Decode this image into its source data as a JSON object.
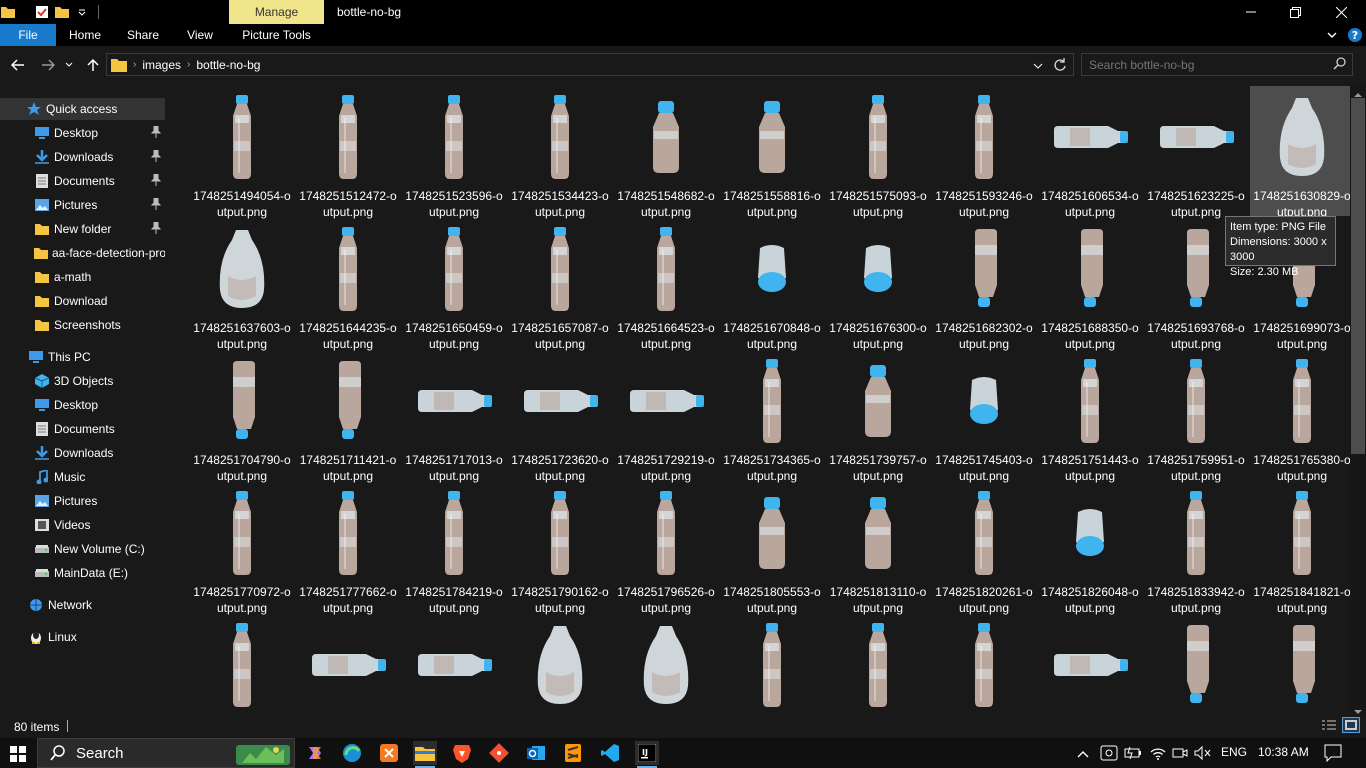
{
  "window": {
    "title": "bottle-no-bg",
    "contextual_tab": "Manage",
    "contextual_subtab": "Picture Tools"
  },
  "ribbon": {
    "tabs": [
      "File",
      "Home",
      "Share",
      "View"
    ]
  },
  "address": {
    "breadcrumbs": [
      "images",
      "bottle-no-bg"
    ]
  },
  "search": {
    "placeholder": "Search bottle-no-bg"
  },
  "sidebar": {
    "quick_access": {
      "label": "Quick access",
      "items": [
        {
          "label": "Desktop",
          "icon": "desktop-icon",
          "pinned": true
        },
        {
          "label": "Downloads",
          "icon": "download-icon",
          "pinned": true
        },
        {
          "label": "Documents",
          "icon": "document-icon",
          "pinned": true
        },
        {
          "label": "Pictures",
          "icon": "pictures-icon",
          "pinned": true
        },
        {
          "label": "New folder",
          "icon": "folder-icon",
          "pinned": true
        },
        {
          "label": "aa-face-detection-pro",
          "icon": "folder-icon",
          "pinned": false
        },
        {
          "label": "a-math",
          "icon": "folder-icon",
          "pinned": false
        },
        {
          "label": "Download",
          "icon": "folder-icon",
          "pinned": false
        },
        {
          "label": "Screenshots",
          "icon": "folder-icon",
          "pinned": false
        }
      ]
    },
    "this_pc": {
      "label": "This PC",
      "items": [
        {
          "label": "3D Objects",
          "icon": "3d-objects-icon"
        },
        {
          "label": "Desktop",
          "icon": "desktop-icon"
        },
        {
          "label": "Documents",
          "icon": "document-icon"
        },
        {
          "label": "Downloads",
          "icon": "download-icon"
        },
        {
          "label": "Music",
          "icon": "music-icon"
        },
        {
          "label": "Pictures",
          "icon": "pictures-icon"
        },
        {
          "label": "Videos",
          "icon": "video-icon"
        },
        {
          "label": "New Volume (C:)",
          "icon": "drive-icon"
        },
        {
          "label": "MainData (E:)",
          "icon": "drive-icon"
        }
      ]
    },
    "network": {
      "label": "Network"
    },
    "linux": {
      "label": "Linux"
    }
  },
  "files": [
    {
      "line1": "1748251494054-o",
      "line2": "utput.png",
      "kind": "upright"
    },
    {
      "line1": "1748251512472-o",
      "line2": "utput.png",
      "kind": "upright"
    },
    {
      "line1": "1748251523596-o",
      "line2": "utput.png",
      "kind": "upright"
    },
    {
      "line1": "1748251534423-o",
      "line2": "utput.png",
      "kind": "upright"
    },
    {
      "line1": "1748251548682-o",
      "line2": "utput.png",
      "kind": "short"
    },
    {
      "line1": "1748251558816-o",
      "line2": "utput.png",
      "kind": "short"
    },
    {
      "line1": "1748251575093-o",
      "line2": "utput.png",
      "kind": "upright"
    },
    {
      "line1": "1748251593246-o",
      "line2": "utput.png",
      "kind": "upright"
    },
    {
      "line1": "1748251606534-o",
      "line2": "utput.png",
      "kind": "horizontal"
    },
    {
      "line1": "1748251623225-o",
      "line2": "utput.png",
      "kind": "horizontal"
    },
    {
      "line1": "1748251630829-o",
      "line2": "utput.png",
      "kind": "blob"
    },
    {
      "line1": "1748251637603-o",
      "line2": "utput.png",
      "kind": "blob"
    },
    {
      "line1": "1748251644235-o",
      "line2": "utput.png",
      "kind": "upright"
    },
    {
      "line1": "1748251650459-o",
      "line2": "utput.png",
      "kind": "upright"
    },
    {
      "line1": "1748251657087-o",
      "line2": "utput.png",
      "kind": "upright"
    },
    {
      "line1": "1748251664523-o",
      "line2": "utput.png",
      "kind": "upright"
    },
    {
      "line1": "1748251670848-o",
      "line2": "utput.png",
      "kind": "small"
    },
    {
      "line1": "1748251676300-o",
      "line2": "utput.png",
      "kind": "small"
    },
    {
      "line1": "1748251682302-o",
      "line2": "utput.png",
      "kind": "down"
    },
    {
      "line1": "1748251688350-o",
      "line2": "utput.png",
      "kind": "down"
    },
    {
      "line1": "1748251693768-o",
      "line2": "utput.png",
      "kind": "down"
    },
    {
      "line1": "1748251699073-o",
      "line2": "utput.png",
      "kind": "down"
    },
    {
      "line1": "1748251704790-o",
      "line2": "utput.png",
      "kind": "down"
    },
    {
      "line1": "1748251711421-o",
      "line2": "utput.png",
      "kind": "down"
    },
    {
      "line1": "1748251717013-o",
      "line2": "utput.png",
      "kind": "horizontal"
    },
    {
      "line1": "1748251723620-o",
      "line2": "utput.png",
      "kind": "horizontal"
    },
    {
      "line1": "1748251729219-o",
      "line2": "utput.png",
      "kind": "horizontal"
    },
    {
      "line1": "1748251734365-o",
      "line2": "utput.png",
      "kind": "upright"
    },
    {
      "line1": "1748251739757-o",
      "line2": "utput.png",
      "kind": "short"
    },
    {
      "line1": "1748251745403-o",
      "line2": "utput.png",
      "kind": "small"
    },
    {
      "line1": "1748251751443-o",
      "line2": "utput.png",
      "kind": "upright"
    },
    {
      "line1": "1748251759951-o",
      "line2": "utput.png",
      "kind": "upright"
    },
    {
      "line1": "1748251765380-o",
      "line2": "utput.png",
      "kind": "upright"
    },
    {
      "line1": "1748251770972-o",
      "line2": "utput.png",
      "kind": "upright"
    },
    {
      "line1": "1748251777662-o",
      "line2": "utput.png",
      "kind": "upright"
    },
    {
      "line1": "1748251784219-o",
      "line2": "utput.png",
      "kind": "upright"
    },
    {
      "line1": "1748251790162-o",
      "line2": "utput.png",
      "kind": "upright"
    },
    {
      "line1": "1748251796526-o",
      "line2": "utput.png",
      "kind": "upright"
    },
    {
      "line1": "1748251805553-o",
      "line2": "utput.png",
      "kind": "short"
    },
    {
      "line1": "1748251813110-o",
      "line2": "utput.png",
      "kind": "short"
    },
    {
      "line1": "1748251820261-o",
      "line2": "utput.png",
      "kind": "upright"
    },
    {
      "line1": "1748251826048-o",
      "line2": "utput.png",
      "kind": "small"
    },
    {
      "line1": "1748251833942-o",
      "line2": "utput.png",
      "kind": "upright"
    },
    {
      "line1": "1748251841821-o",
      "line2": "utput.png",
      "kind": "upright"
    },
    {
      "line1": "",
      "line2": "",
      "kind": "upright"
    },
    {
      "line1": "",
      "line2": "",
      "kind": "horizontal"
    },
    {
      "line1": "",
      "line2": "",
      "kind": "horizontal"
    },
    {
      "line1": "",
      "line2": "",
      "kind": "blob"
    },
    {
      "line1": "",
      "line2": "",
      "kind": "blob"
    },
    {
      "line1": "",
      "line2": "",
      "kind": "upright"
    },
    {
      "line1": "",
      "line2": "",
      "kind": "upright"
    },
    {
      "line1": "",
      "line2": "",
      "kind": "upright"
    },
    {
      "line1": "",
      "line2": "",
      "kind": "horizontal"
    },
    {
      "line1": "",
      "line2": "",
      "kind": "down"
    },
    {
      "line1": "",
      "line2": "",
      "kind": "down"
    }
  ],
  "tooltip": {
    "line1": "Item type: PNG File",
    "line2": "Dimensions: 3000 x 3000",
    "line3": "Size: 2.30 MB"
  },
  "status": {
    "count": "80 items"
  },
  "taskbar": {
    "search_label": "Search",
    "lang": "ENG",
    "time": "10:38 AM"
  },
  "colors": {
    "accent": "#1979ca",
    "manage_tab": "#f1e58c",
    "bottle_cap": "#3fb4ee",
    "folder": "#f5c542"
  }
}
